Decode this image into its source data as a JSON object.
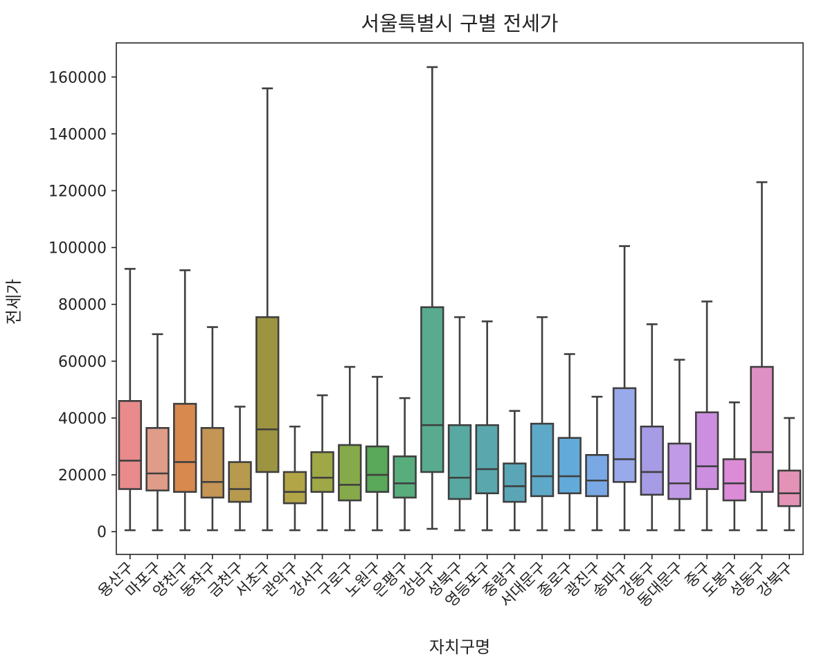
{
  "chart_data": {
    "type": "box",
    "title": "서울특별시 구별 전세가",
    "xlabel": "자치구명",
    "ylabel": "전세가",
    "ylim": [
      -8000,
      172000
    ],
    "yticks": [
      0,
      20000,
      40000,
      60000,
      80000,
      100000,
      120000,
      140000,
      160000
    ],
    "grid": false,
    "legend": "none",
    "categories": [
      "용산구",
      "마포구",
      "양천구",
      "동작구",
      "금천구",
      "서초구",
      "관악구",
      "강서구",
      "구로구",
      "노원구",
      "은평구",
      "강남구",
      "성북구",
      "영등포구",
      "중랑구",
      "서대문구",
      "종로구",
      "광진구",
      "송파구",
      "강동구",
      "동대문구",
      "중구",
      "도봉구",
      "성동구",
      "강북구"
    ],
    "colors": [
      "#e98b8c",
      "#df9c88",
      "#d8894e",
      "#c49554",
      "#b79a4e",
      "#9c9440",
      "#b2a548",
      "#9fa846",
      "#86aa4a",
      "#5aa85a",
      "#57ad7c",
      "#58ab8f",
      "#58a9a1",
      "#5aa8ae",
      "#5aa6b7",
      "#5ea9c8",
      "#62aad9",
      "#79a8e4",
      "#9aa9ea",
      "#a69be5",
      "#c09ae6",
      "#cc8fe0",
      "#dc8bd6",
      "#de8fc4",
      "#e393b5"
    ],
    "boxes": [
      {
        "whislo": 500,
        "q1": 15000,
        "med": 25000,
        "q3": 46000,
        "whishi": 92500
      },
      {
        "whislo": 500,
        "q1": 14500,
        "med": 20500,
        "q3": 36500,
        "whishi": 69500
      },
      {
        "whislo": 500,
        "q1": 14000,
        "med": 24500,
        "q3": 45000,
        "whishi": 92000
      },
      {
        "whislo": 500,
        "q1": 12000,
        "med": 17500,
        "q3": 36500,
        "whishi": 72000
      },
      {
        "whislo": 500,
        "q1": 10500,
        "med": 15000,
        "q3": 24500,
        "whishi": 44000
      },
      {
        "whislo": 500,
        "q1": 21000,
        "med": 36000,
        "q3": 75500,
        "whishi": 156000
      },
      {
        "whislo": 500,
        "q1": 10000,
        "med": 14000,
        "q3": 21000,
        "whishi": 37000
      },
      {
        "whislo": 500,
        "q1": 14000,
        "med": 19000,
        "q3": 28000,
        "whishi": 48000
      },
      {
        "whislo": 500,
        "q1": 11000,
        "med": 16500,
        "q3": 30500,
        "whishi": 58000
      },
      {
        "whislo": 500,
        "q1": 14000,
        "med": 20000,
        "q3": 30000,
        "whishi": 54500
      },
      {
        "whislo": 500,
        "q1": 12000,
        "med": 17000,
        "q3": 26500,
        "whishi": 47000
      },
      {
        "whislo": 1000,
        "q1": 21000,
        "med": 37500,
        "q3": 79000,
        "whishi": 163500
      },
      {
        "whislo": 500,
        "q1": 11500,
        "med": 19000,
        "q3": 37500,
        "whishi": 75500
      },
      {
        "whislo": 500,
        "q1": 13500,
        "med": 22000,
        "q3": 37500,
        "whishi": 74000
      },
      {
        "whislo": 500,
        "q1": 10500,
        "med": 16000,
        "q3": 24000,
        "whishi": 42500
      },
      {
        "whislo": 500,
        "q1": 12500,
        "med": 19500,
        "q3": 38000,
        "whishi": 75500
      },
      {
        "whislo": 500,
        "q1": 13500,
        "med": 19500,
        "q3": 33000,
        "whishi": 62500
      },
      {
        "whislo": 500,
        "q1": 12500,
        "med": 18000,
        "q3": 27000,
        "whishi": 47500
      },
      {
        "whislo": 500,
        "q1": 17500,
        "med": 25500,
        "q3": 50500,
        "whishi": 100500
      },
      {
        "whislo": 500,
        "q1": 13000,
        "med": 21000,
        "q3": 37000,
        "whishi": 73000
      },
      {
        "whislo": 500,
        "q1": 11500,
        "med": 17000,
        "q3": 31000,
        "whishi": 60500
      },
      {
        "whislo": 500,
        "q1": 15000,
        "med": 23000,
        "q3": 42000,
        "whishi": 81000
      },
      {
        "whislo": 500,
        "q1": 11000,
        "med": 17000,
        "q3": 25500,
        "whishi": 45500
      },
      {
        "whislo": 500,
        "q1": 14000,
        "med": 28000,
        "q3": 58000,
        "whishi": 123000
      },
      {
        "whislo": 500,
        "q1": 9000,
        "med": 13500,
        "q3": 21500,
        "whishi": 40000
      }
    ]
  }
}
